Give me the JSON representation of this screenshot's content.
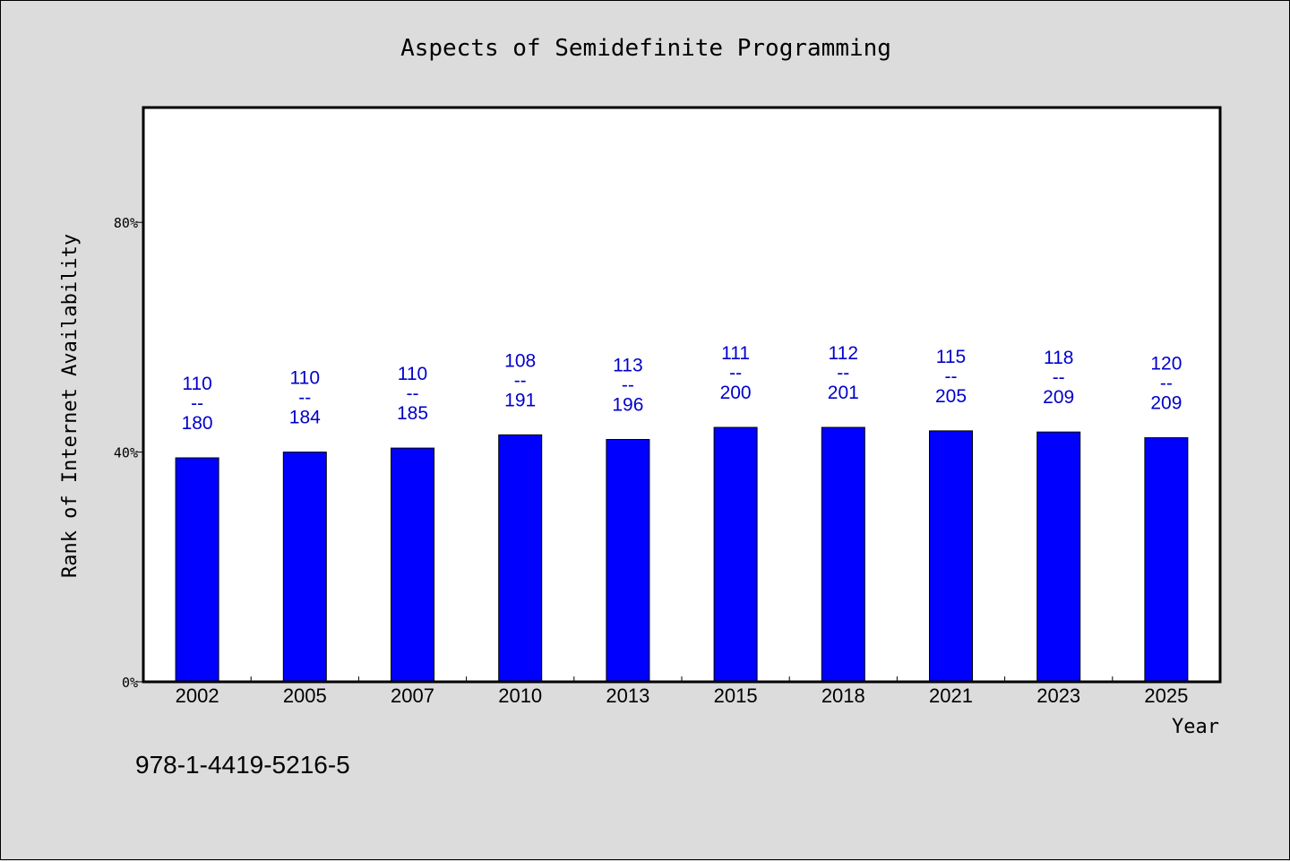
{
  "chart_data": {
    "type": "bar",
    "title": "Aspects of Semidefinite Programming",
    "xlabel": "Year",
    "ylabel": "Rank of Internet Availability",
    "categories": [
      "2002",
      "2005",
      "2007",
      "2010",
      "2013",
      "2015",
      "2018",
      "2021",
      "2023",
      "2025"
    ],
    "values": [
      39,
      40,
      40.7,
      43,
      42.2,
      44.3,
      44.3,
      43.7,
      43.5,
      42.5
    ],
    "bar_labels": [
      {
        "top": "110",
        "sep": "--",
        "bottom": "180"
      },
      {
        "top": "110",
        "sep": "--",
        "bottom": "184"
      },
      {
        "top": "110",
        "sep": "--",
        "bottom": "185"
      },
      {
        "top": "108",
        "sep": "--",
        "bottom": "191"
      },
      {
        "top": "113",
        "sep": "--",
        "bottom": "196"
      },
      {
        "top": "111",
        "sep": "--",
        "bottom": "200"
      },
      {
        "top": "112",
        "sep": "--",
        "bottom": "201"
      },
      {
        "top": "115",
        "sep": "--",
        "bottom": "205"
      },
      {
        "top": "118",
        "sep": "--",
        "bottom": "209"
      },
      {
        "top": "120",
        "sep": "--",
        "bottom": "209"
      }
    ],
    "yticks": [
      0,
      40,
      80
    ],
    "ytick_labels": [
      "0%",
      "40%",
      "80%"
    ],
    "ylim": [
      0,
      100
    ],
    "grid": false,
    "bar_color": "#0000ff",
    "label_color": "#0000cc",
    "background": "#dcdcdc",
    "plot_background": "#ffffff"
  },
  "footer_text": "978-1-4419-5216-5"
}
